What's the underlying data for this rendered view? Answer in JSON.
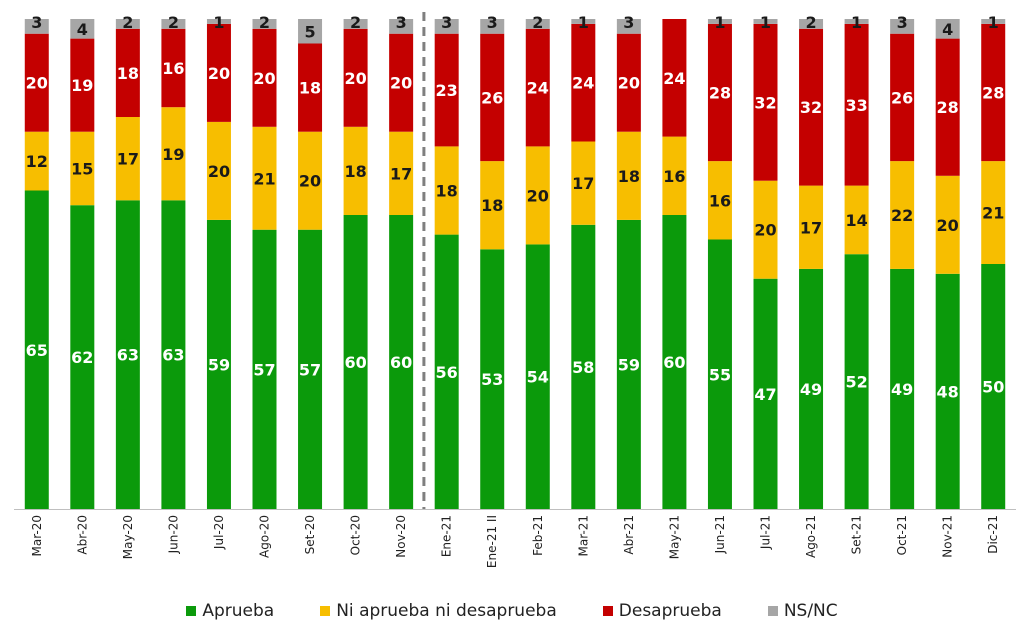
{
  "chart_data": {
    "type": "bar",
    "stacked": true,
    "normalized": true,
    "categories": [
      "Mar-20",
      "Abr-20",
      "May-20",
      "Jun-20",
      "Jul-20",
      "Ago-20",
      "Set-20",
      "Oct-20",
      "Nov-20",
      "Ene-21",
      "Ene-21 II",
      "Feb-21",
      "Mar-21",
      "Abr-21",
      "May-21",
      "Jun-21",
      "Jul-21",
      "Ago-21",
      "Set-21",
      "Oct-21",
      "Nov-21",
      "Dic-21"
    ],
    "series": [
      {
        "name": "Aprueba",
        "color": "#0b9a0b",
        "label_color": "#ffffff",
        "values": [
          65,
          62,
          63,
          63,
          59,
          57,
          57,
          60,
          60,
          56,
          53,
          54,
          58,
          59,
          60,
          55,
          47,
          49,
          52,
          49,
          48,
          50
        ]
      },
      {
        "name": "Ni aprueba ni desaprueba",
        "color": "#f7be00",
        "label_color": "#1a1a1a",
        "values": [
          12,
          15,
          17,
          19,
          20,
          21,
          20,
          18,
          17,
          18,
          18,
          20,
          17,
          18,
          16,
          16,
          20,
          17,
          14,
          22,
          20,
          21
        ]
      },
      {
        "name": "Desaprueba",
        "color": "#c40000",
        "label_color": "#ffffff",
        "values": [
          20,
          19,
          18,
          16,
          20,
          20,
          18,
          20,
          20,
          23,
          26,
          24,
          24,
          20,
          24,
          28,
          32,
          32,
          33,
          26,
          28,
          28
        ]
      },
      {
        "name": "NS/NC",
        "color": "#a6a6a6",
        "label_color": "#1a1a1a",
        "values": [
          3,
          4,
          2,
          2,
          1,
          2,
          5,
          2,
          3,
          3,
          3,
          2,
          1,
          3,
          null,
          1,
          1,
          2,
          1,
          3,
          4,
          1
        ]
      }
    ],
    "divider_after_index": 8,
    "legend_position": "bottom",
    "grid": false
  }
}
